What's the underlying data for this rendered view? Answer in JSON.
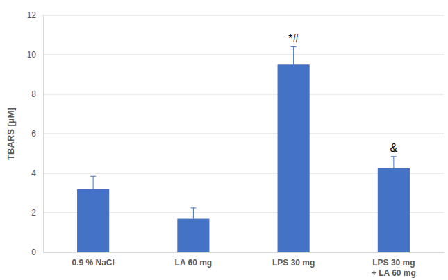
{
  "chart_data": {
    "type": "bar",
    "categories": [
      "0.9 % NaCl",
      "LA 60 mg",
      "LPS 30 mg",
      "LPS 30 mg\n+ LA 60 mg"
    ],
    "values": [
      3.2,
      1.7,
      9.5,
      4.25
    ],
    "errors": [
      0.65,
      0.55,
      0.9,
      0.6
    ],
    "color": "#4472c4",
    "y_label": "TBARS [μM]",
    "ylim": [
      0,
      12
    ],
    "yticks": [
      0,
      2,
      4,
      6,
      8,
      10,
      12
    ],
    "grid": true,
    "annotations": [
      {
        "text": "*#",
        "x": "LPS 30 mg"
      },
      {
        "text": "&",
        "x": "LPS 30 mg\n+ LA 60 mg"
      }
    ]
  }
}
